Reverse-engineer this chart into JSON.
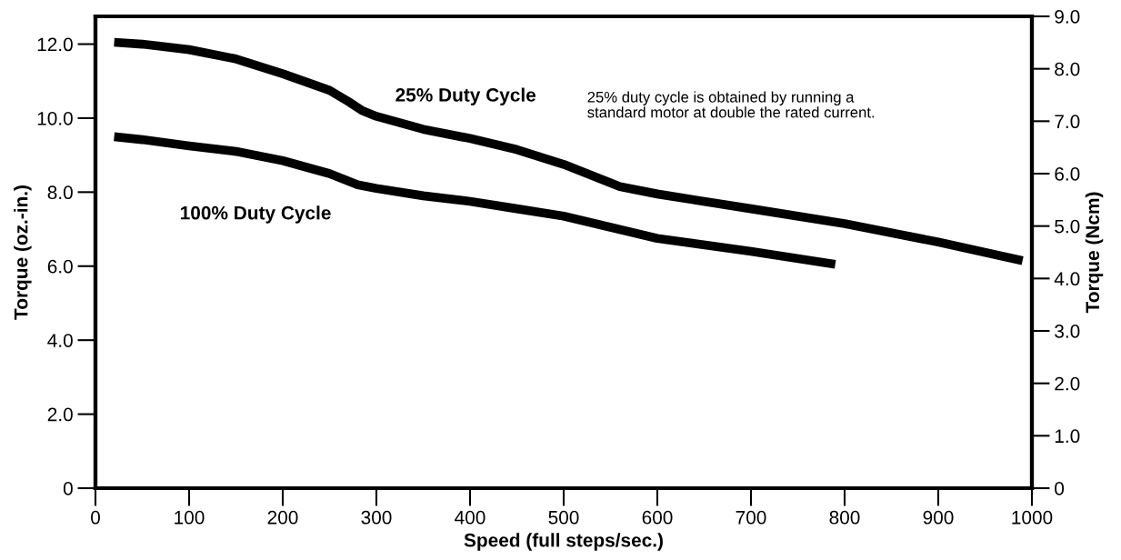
{
  "chart_data": {
    "type": "line",
    "xlabel": "Speed (full steps/sec.)",
    "ylabel": "Torque (oz.-in.)",
    "y2label": "Torque (Ncm)",
    "xlim": [
      0,
      1000
    ],
    "xticks": [
      0,
      100,
      200,
      300,
      400,
      500,
      600,
      700,
      800,
      900,
      1000
    ],
    "ylim": [
      0,
      12.75
    ],
    "yticks": [
      0,
      {
        "value": 2,
        "label": "2.0"
      },
      {
        "value": 4,
        "label": "4.0"
      },
      {
        "value": 6,
        "label": "6.0"
      },
      {
        "value": 8,
        "label": "8.0"
      },
      {
        "value": 10,
        "label": "10.0"
      },
      {
        "value": 12,
        "label": "12.0"
      }
    ],
    "y2lim": [
      0,
      9
    ],
    "y2ticks": [
      0,
      {
        "value": 1,
        "label": "1.0"
      },
      {
        "value": 2,
        "label": "2.0"
      },
      {
        "value": 3,
        "label": "3.0"
      },
      {
        "value": 4,
        "label": "4.0"
      },
      {
        "value": 5,
        "label": "5.0"
      },
      {
        "value": 6,
        "label": "6.0"
      },
      {
        "value": 7,
        "label": "7.0"
      },
      {
        "value": 8,
        "label": "8.0"
      },
      {
        "value": 9,
        "label": "9.0"
      }
    ],
    "grid": false,
    "legend": false,
    "marker": "none",
    "line_style": "solid",
    "series": [
      {
        "name": "25% Duty Cycle",
        "color": "#000000",
        "x": [
          20,
          50,
          100,
          150,
          200,
          250,
          270,
          285,
          300,
          350,
          400,
          450,
          500,
          530,
          560,
          600,
          700,
          800,
          900,
          990
        ],
        "values": [
          12.05,
          12.0,
          11.85,
          11.6,
          11.2,
          10.75,
          10.45,
          10.2,
          10.05,
          9.7,
          9.45,
          9.15,
          8.75,
          8.45,
          8.15,
          7.95,
          7.55,
          7.15,
          6.65,
          6.15
        ]
      },
      {
        "name": "100% Duty Cycle",
        "color": "#000000",
        "x": [
          20,
          50,
          100,
          150,
          200,
          250,
          280,
          300,
          350,
          400,
          450,
          500,
          550,
          600,
          700,
          790
        ],
        "values": [
          9.5,
          9.42,
          9.25,
          9.1,
          8.85,
          8.5,
          8.2,
          8.1,
          7.9,
          7.75,
          7.55,
          7.35,
          7.05,
          6.75,
          6.4,
          6.05
        ]
      }
    ],
    "annotations": [
      "25% duty cycle is obtained by running a\nstandard motor at double the rated current."
    ]
  }
}
